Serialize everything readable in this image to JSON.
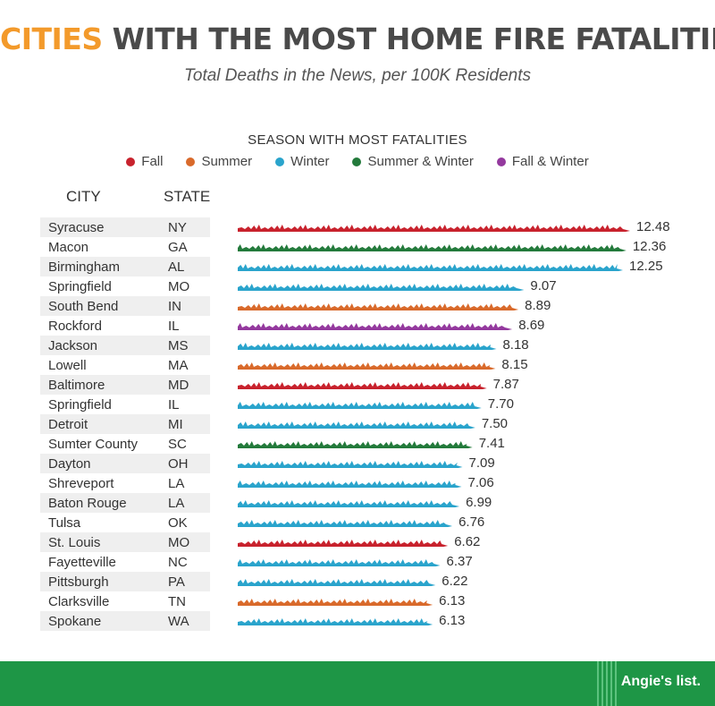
{
  "header": {
    "title_accent": "CITIES",
    "title_rest": " WITH THE MOST HOME FIRE FATALITIES",
    "subtitle": "Total Deaths in the News, per 100K Residents"
  },
  "legend": {
    "title": "SEASON WITH MOST FATALITIES",
    "items": [
      {
        "label": "Fall",
        "color": "#c8222d"
      },
      {
        "label": "Summer",
        "color": "#d96a2b"
      },
      {
        "label": "Winter",
        "color": "#2aa4cc"
      },
      {
        "label": "Summer & Winter",
        "color": "#237a3b"
      },
      {
        "label": "Fall & Winter",
        "color": "#94399e"
      }
    ]
  },
  "columns": {
    "city": "CITY",
    "state": "STATE"
  },
  "footer": {
    "logo": "Angie's list."
  },
  "chart_data": {
    "type": "bar",
    "title": "CITIES WITH THE MOST HOME FIRE FATALITIES",
    "subtitle": "Total Deaths in the News, per 100K Residents",
    "orientation": "horizontal",
    "xlim": [
      0,
      12.48
    ],
    "categories": [
      "Syracuse",
      "Macon",
      "Birmingham",
      "Springfield",
      "South Bend",
      "Rockford",
      "Jackson",
      "Lowell",
      "Baltimore",
      "Springfield",
      "Detroit",
      "Sumter County",
      "Dayton",
      "Shreveport",
      "Baton Rouge",
      "Tulsa",
      "St. Louis",
      "Fayetteville",
      "Pittsburgh",
      "Clarksville",
      "Spokane"
    ],
    "states": [
      "NY",
      "GA",
      "AL",
      "MO",
      "IN",
      "IL",
      "MS",
      "MA",
      "MD",
      "IL",
      "MI",
      "SC",
      "OH",
      "LA",
      "LA",
      "OK",
      "MO",
      "NC",
      "PA",
      "TN",
      "WA"
    ],
    "values": [
      12.48,
      12.36,
      12.25,
      9.07,
      8.89,
      8.69,
      8.18,
      8.15,
      7.87,
      7.7,
      7.5,
      7.41,
      7.09,
      7.06,
      6.99,
      6.76,
      6.62,
      6.37,
      6.22,
      6.13,
      6.13
    ],
    "value_labels": [
      "12.48",
      "12.36",
      "12.25",
      "9.07",
      "8.89",
      "8.69",
      "8.18",
      "8.15",
      "7.87",
      "7.70",
      "7.50",
      "7.41",
      "7.09",
      "7.06",
      "6.99",
      "6.76",
      "6.62",
      "6.37",
      "6.22",
      "6.13",
      "6.13"
    ],
    "seasons": [
      "Fall",
      "Summer & Winter",
      "Winter",
      "Winter",
      "Summer",
      "Fall & Winter",
      "Winter",
      "Summer",
      "Fall",
      "Winter",
      "Winter",
      "Summer & Winter",
      "Winter",
      "Winter",
      "Winter",
      "Winter",
      "Fall",
      "Winter",
      "Winter",
      "Summer",
      "Winter"
    ]
  }
}
